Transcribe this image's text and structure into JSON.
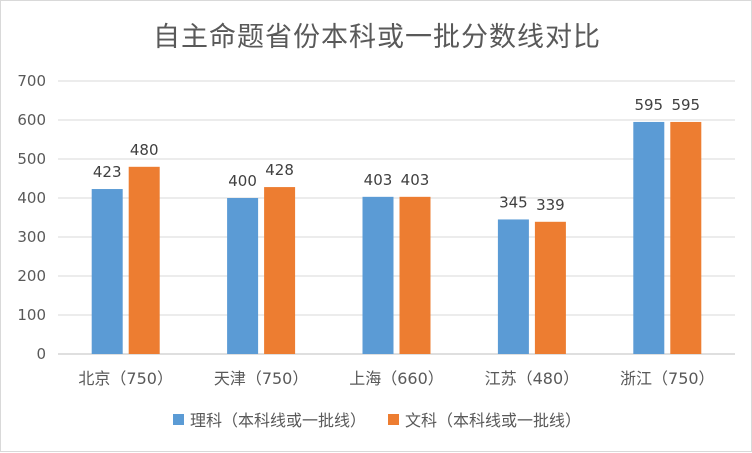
{
  "chart_data": {
    "type": "bar",
    "title": "自主命题省份本科或一批分数线对比",
    "categories": [
      "北京（750）",
      "天津（750）",
      "上海（660）",
      "江苏（480）",
      "浙江（750）"
    ],
    "series": [
      {
        "name": "理科（本科线或一批线）",
        "values": [
          423,
          400,
          403,
          345,
          595
        ],
        "color": "#5b9bd5"
      },
      {
        "name": "文科（本科线或一批线）",
        "values": [
          480,
          428,
          403,
          339,
          595
        ],
        "color": "#ed7d31"
      }
    ],
    "ylim": [
      0,
      700
    ],
    "yticks": [
      0,
      100,
      200,
      300,
      400,
      500,
      600,
      700
    ],
    "grid": true,
    "legend_position": "bottom",
    "xlabel": "",
    "ylabel": ""
  }
}
